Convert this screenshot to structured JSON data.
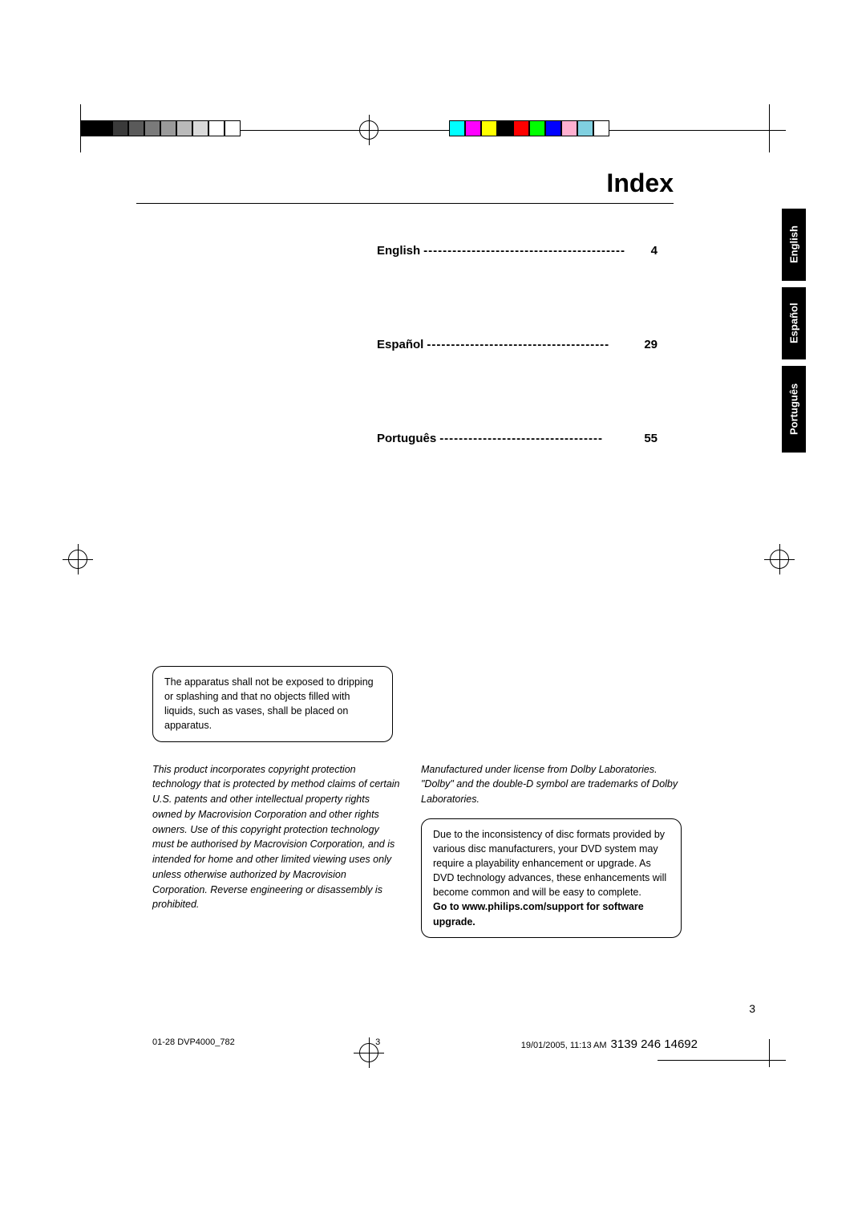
{
  "title": "Index",
  "index": {
    "english": {
      "label": "English",
      "dashes": "------------------------------------------",
      "page": "4"
    },
    "espanol": {
      "label": "Español",
      "dashes": "--------------------------------------",
      "page": "29"
    },
    "portugues": {
      "label": "Português",
      "dashes": "----------------------------------",
      "page": "55"
    }
  },
  "tabs": {
    "english": "English",
    "espanol": "Español",
    "portugues": "Português"
  },
  "box_dripping": "The apparatus shall not be exposed to dripping or splashing and that no objects filled with liquids, such as vases, shall be placed on apparatus.",
  "macrovision": "This product incorporates copyright protection technology that is protected by method claims of certain U.S. patents and other intellectual property rights owned by Macrovision Corporation and other rights owners. Use of this copyright protection technology must be authorised by Macrovision Corporation, and is intended for home and other limited viewing uses only unless otherwise authorized by Macrovision Corporation. Reverse engineering or disassembly is prohibited.",
  "dolby": "Manufactured under license from Dolby Laboratories. \"Dolby\" and the double-D symbol are trademarks of Dolby Laboratories.",
  "disc_box": {
    "body": "Due to the inconsistency of disc formats provided by various disc manufacturers, your DVD system may require a playability enhancement or upgrade. As DVD technology advances, these enhancements will become common and will be easy to complete.",
    "bold": "Go to www.philips.com/support for software upgrade."
  },
  "page_num": "3",
  "footer": {
    "left": "01-28 DVP4000_782",
    "mid": "3",
    "date": "19/01/2005, 11:13 AM",
    "part": "3139 246 14692"
  },
  "colors": {
    "left_bar": [
      "#000000",
      "#000000",
      "#3a3a3a",
      "#5a5a5a",
      "#7a7a7a",
      "#9a9a9a",
      "#bababa",
      "#dadada",
      "#ffffff",
      "#ffffff"
    ],
    "right_bar": [
      "#00ffff",
      "#ff00ff",
      "#ffff00",
      "#000000",
      "#ff0000",
      "#00ff00",
      "#0000ff",
      "#ffb0d0",
      "#80d0e0",
      "#ffffff"
    ]
  }
}
